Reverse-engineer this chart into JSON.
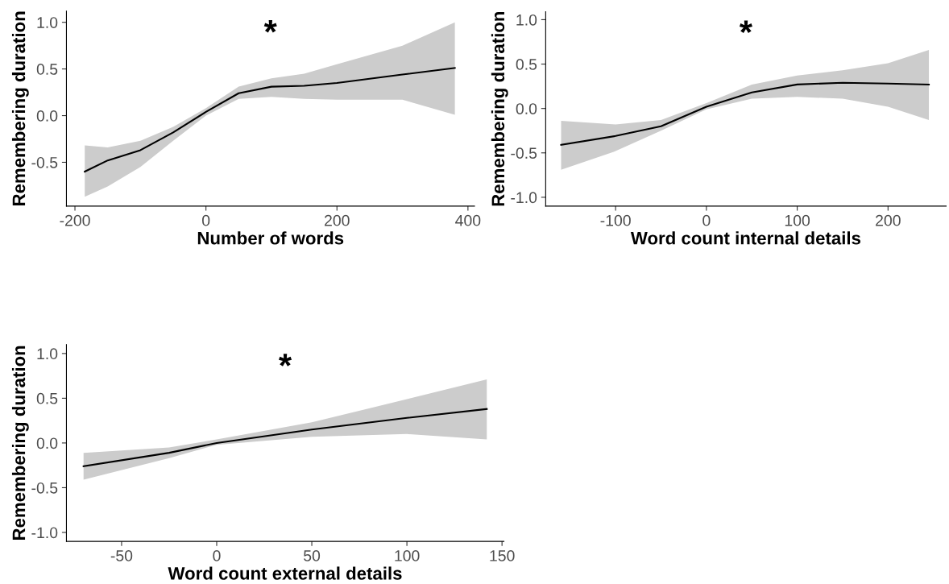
{
  "chart_data": [
    {
      "type": "line",
      "xlabel": "Number of words",
      "ylabel": "Remembering duration",
      "xlim": [
        -213,
        410
      ],
      "ylim": [
        -0.97,
        1.12
      ],
      "xticks": [
        -200,
        0,
        200,
        400
      ],
      "yticks": [
        {
          "value": -0.5,
          "label": "-0.5"
        },
        {
          "value": 0,
          "label": "0.0"
        },
        {
          "value": 0.5,
          "label": "0.5"
        },
        {
          "value": 1,
          "label": "1.0"
        }
      ],
      "series": [
        {
          "color": "#000000",
          "x": [
            -185,
            -150,
            -100,
            -50,
            0,
            50,
            100,
            150,
            200,
            300,
            380
          ],
          "values": [
            -0.6,
            -0.48,
            -0.37,
            -0.18,
            0.04,
            0.24,
            0.31,
            0.32,
            0.35,
            0.44,
            0.51
          ],
          "lower": [
            -0.87,
            -0.76,
            -0.55,
            -0.27,
            0.0,
            0.18,
            0.2,
            0.18,
            0.17,
            0.17,
            0.01
          ],
          "upper": [
            -0.32,
            -0.34,
            -0.27,
            -0.12,
            0.08,
            0.31,
            0.4,
            0.45,
            0.55,
            0.75,
            1.0
          ]
        }
      ],
      "annotations": [
        "*"
      ],
      "grid": false
    },
    {
      "type": "line",
      "xlabel": "Word count internal details",
      "ylabel": "Remembering duration",
      "xlim": [
        -177,
        264
      ],
      "ylim": [
        -1.1,
        1.09
      ],
      "xticks": [
        -100,
        0,
        100,
        200
      ],
      "yticks": [
        {
          "value": -1,
          "label": "-1.0"
        },
        {
          "value": -0.5,
          "label": "-0.5"
        },
        {
          "value": 0,
          "label": "0.0"
        },
        {
          "value": 0.5,
          "label": "0.5"
        },
        {
          "value": 1,
          "label": "1.0"
        }
      ],
      "series": [
        {
          "color": "#000000",
          "x": [
            -160,
            -100,
            -50,
            0,
            50,
            100,
            150,
            200,
            245
          ],
          "values": [
            -0.41,
            -0.31,
            -0.2,
            0.02,
            0.18,
            0.27,
            0.29,
            0.28,
            0.27
          ],
          "lower": [
            -0.69,
            -0.48,
            -0.25,
            -0.01,
            0.11,
            0.13,
            0.11,
            0.02,
            -0.13
          ],
          "upper": [
            -0.14,
            -0.18,
            -0.13,
            0.06,
            0.27,
            0.37,
            0.43,
            0.51,
            0.66
          ]
        }
      ],
      "annotations": [
        "*"
      ],
      "grid": false
    },
    {
      "type": "line",
      "xlabel": "Word count external details",
      "ylabel": "Remembering duration",
      "xlim": [
        -79,
        151
      ],
      "ylim": [
        -1.1,
        1.1
      ],
      "xticks": [
        -50,
        0,
        50,
        100,
        150
      ],
      "yticks": [
        {
          "value": -1,
          "label": "-1.0"
        },
        {
          "value": -0.5,
          "label": "-0.5"
        },
        {
          "value": 0,
          "label": "0.0"
        },
        {
          "value": 0.5,
          "label": "0.5"
        },
        {
          "value": 1,
          "label": "1.0"
        }
      ],
      "series": [
        {
          "color": "#000000",
          "x": [
            -70,
            -25,
            0,
            50,
            100,
            142
          ],
          "values": [
            -0.26,
            -0.11,
            0.0,
            0.15,
            0.28,
            0.38
          ],
          "lower": [
            -0.41,
            -0.17,
            -0.02,
            0.07,
            0.1,
            0.04
          ],
          "upper": [
            -0.11,
            -0.05,
            0.04,
            0.23,
            0.49,
            0.71
          ]
        }
      ],
      "annotations": [
        "*"
      ],
      "grid": false
    }
  ]
}
